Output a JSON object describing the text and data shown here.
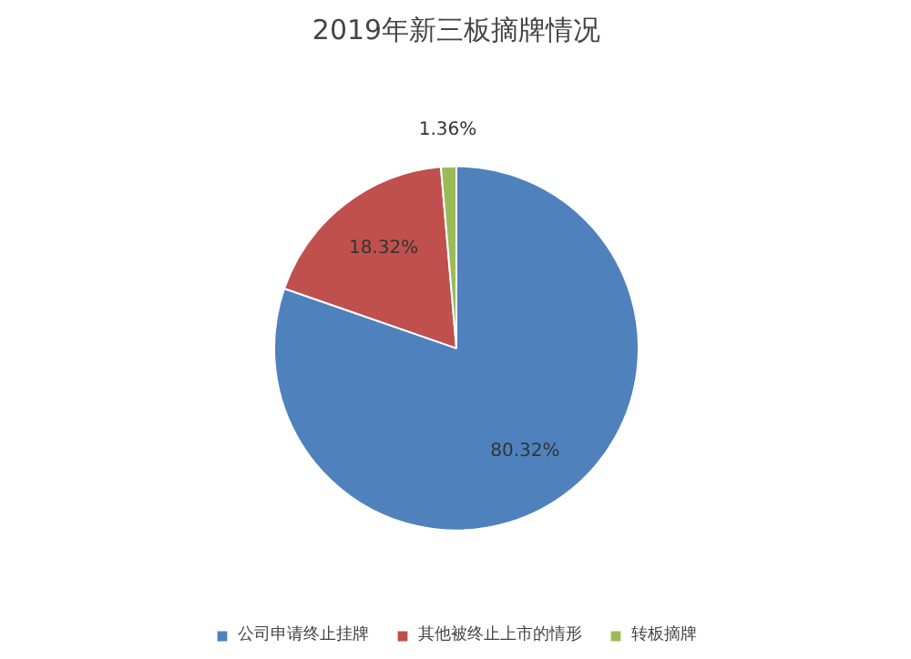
{
  "chart_data": {
    "type": "pie",
    "title": "2019年新三板摘牌情况",
    "categories": [
      "公司申请终止挂牌",
      "其他被终止上市的情形",
      "转板摘牌"
    ],
    "values": [
      80.32,
      18.32,
      1.36
    ],
    "colors": [
      "#4f81bd",
      "#c0504d",
      "#9bbb59"
    ],
    "value_labels": [
      "80.32%",
      "18.32%",
      "1.36%"
    ],
    "legend": "bottom"
  }
}
